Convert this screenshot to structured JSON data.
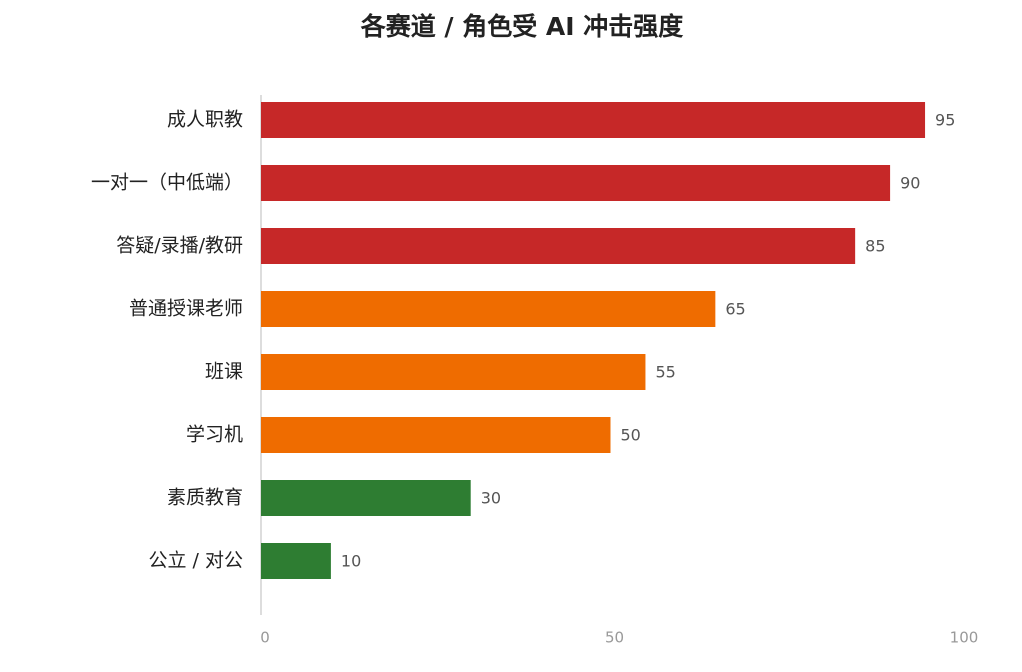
{
  "chart_data": {
    "type": "bar",
    "orientation": "horizontal",
    "title": "各赛道 / 角色受 AI 冲击强度",
    "categories": [
      "成人职教",
      "一对一（中低端）",
      "答疑/录播/教研",
      "普通授课老师",
      "班课",
      "学习机",
      "素质教育",
      "公立 / 对公"
    ],
    "values": [
      95,
      90,
      85,
      65,
      55,
      50,
      30,
      10
    ],
    "colors": [
      "#c62828",
      "#c62828",
      "#c62828",
      "#ef6c00",
      "#ef6c00",
      "#ef6c00",
      "#2e7d32",
      "#2e7d32"
    ],
    "xlim": [
      0,
      100
    ],
    "xticks": [
      0,
      50,
      100
    ],
    "grid": false
  }
}
